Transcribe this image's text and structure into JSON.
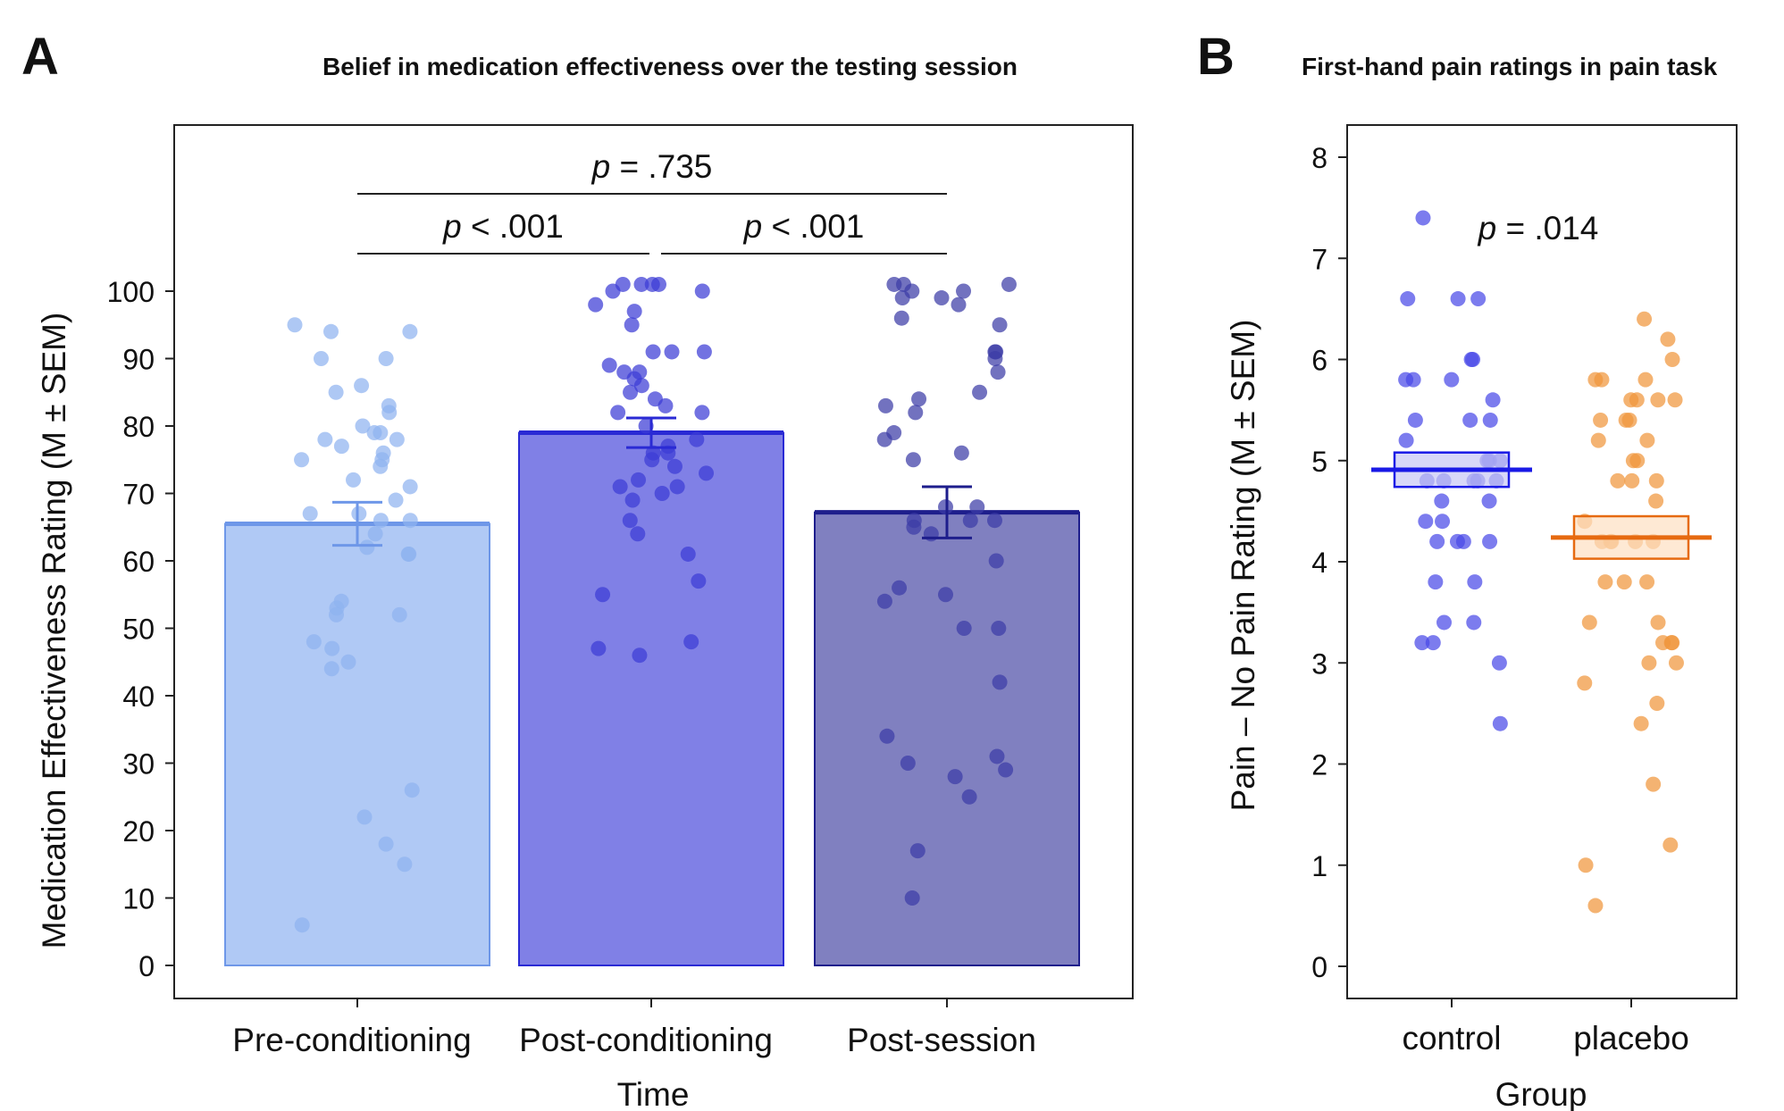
{
  "chart_data": [
    {
      "panel": "A",
      "type": "bar",
      "title": "Belief in medication effectiveness over the testing session",
      "xlabel": "Time",
      "ylabel": "Medication Effectiveness Rating (M ± SEM)",
      "ylim": [
        0,
        100
      ],
      "yticks": [
        0,
        10,
        20,
        30,
        40,
        50,
        60,
        70,
        80,
        90,
        100
      ],
      "categories": [
        "Pre-conditioning",
        "Post-conditioning",
        "Post-session"
      ],
      "values": [
        65.5,
        79.0,
        67.2
      ],
      "sem": [
        3.2,
        2.2,
        3.8
      ],
      "colors": {
        "fill": [
          "#b0c9f5",
          "#8080e6",
          "#8080c0"
        ],
        "edge": [
          "#6e97e8",
          "#2a2ad4",
          "#1e1e8c"
        ],
        "points": [
          "#8fb3f0",
          "#3c3cd6",
          "#3c3ca6"
        ]
      },
      "points": [
        [
          95,
          94,
          94,
          90,
          90,
          86,
          85,
          83,
          82,
          80,
          79,
          79,
          78,
          78,
          77,
          76,
          75,
          75,
          74,
          72,
          71,
          69,
          67,
          67,
          66,
          66,
          64,
          62,
          61,
          61,
          54,
          53,
          52,
          52,
          48,
          47,
          45,
          44,
          26,
          22,
          18,
          15,
          6
        ],
        [
          101,
          101,
          101,
          101,
          100,
          100,
          98,
          97,
          95,
          91,
          91,
          91,
          89,
          88,
          88,
          87,
          86,
          85,
          84,
          83,
          82,
          82,
          80,
          78,
          77,
          76,
          76,
          75,
          74,
          73,
          72,
          71,
          71,
          70,
          69,
          66,
          64,
          61,
          57,
          55,
          48,
          47,
          46
        ],
        [
          101,
          101,
          101,
          100,
          100,
          99,
          99,
          98,
          96,
          95,
          91,
          91,
          90,
          88,
          85,
          84,
          83,
          82,
          79,
          78,
          76,
          75,
          68,
          68,
          66,
          66,
          66,
          65,
          64,
          60,
          56,
          55,
          54,
          50,
          50,
          42,
          34,
          31,
          30,
          29,
          28,
          25,
          17,
          10
        ]
      ],
      "comparisons": [
        {
          "from": 0,
          "to": 2,
          "label": "p = .735"
        },
        {
          "from": 0,
          "to": 1,
          "label": "p < .001"
        },
        {
          "from": 1,
          "to": 2,
          "label": "p < .001"
        }
      ]
    },
    {
      "panel": "B",
      "type": "scatter",
      "title": "First-hand pain ratings in pain task",
      "xlabel": "Group",
      "ylabel": "Pain – No Pain Rating (M ± SEM)",
      "ylim": [
        0,
        8
      ],
      "yticks": [
        0,
        1,
        2,
        3,
        4,
        5,
        6,
        7,
        8
      ],
      "categories": [
        "control",
        "placebo"
      ],
      "means": [
        4.91,
        4.24
      ],
      "sem": [
        0.17,
        0.21
      ],
      "colors": {
        "fill": [
          "#c8c8f5",
          "#fde0c2"
        ],
        "edge": [
          "#1a1ae6",
          "#e66a10"
        ],
        "points": [
          "#4a4ae8",
          "#f0963c"
        ]
      },
      "points": [
        [
          7.4,
          6.6,
          6.6,
          6.6,
          6.0,
          6.0,
          5.8,
          5.8,
          5.8,
          5.6,
          5.4,
          5.4,
          5.4,
          5.2,
          5.0,
          5.0,
          5.0,
          4.8,
          4.8,
          4.8,
          4.8,
          4.8,
          4.6,
          4.6,
          4.4,
          4.4,
          4.2,
          4.2,
          4.2,
          4.2,
          3.8,
          3.8,
          3.4,
          3.4,
          3.2,
          3.2,
          3.0,
          2.4
        ],
        [
          6.4,
          6.2,
          6.0,
          5.8,
          5.8,
          5.8,
          5.6,
          5.6,
          5.6,
          5.6,
          5.4,
          5.4,
          5.4,
          5.2,
          5.2,
          5.0,
          5.0,
          4.8,
          4.8,
          4.8,
          4.6,
          4.4,
          4.2,
          4.2,
          4.2,
          4.2,
          4.2,
          3.8,
          3.8,
          3.8,
          3.4,
          3.4,
          3.2,
          3.2,
          3.2,
          3.0,
          3.0,
          2.8,
          2.6,
          2.4,
          1.8,
          1.2,
          1.0,
          0.6
        ]
      ],
      "annotation": "p = .014"
    }
  ]
}
